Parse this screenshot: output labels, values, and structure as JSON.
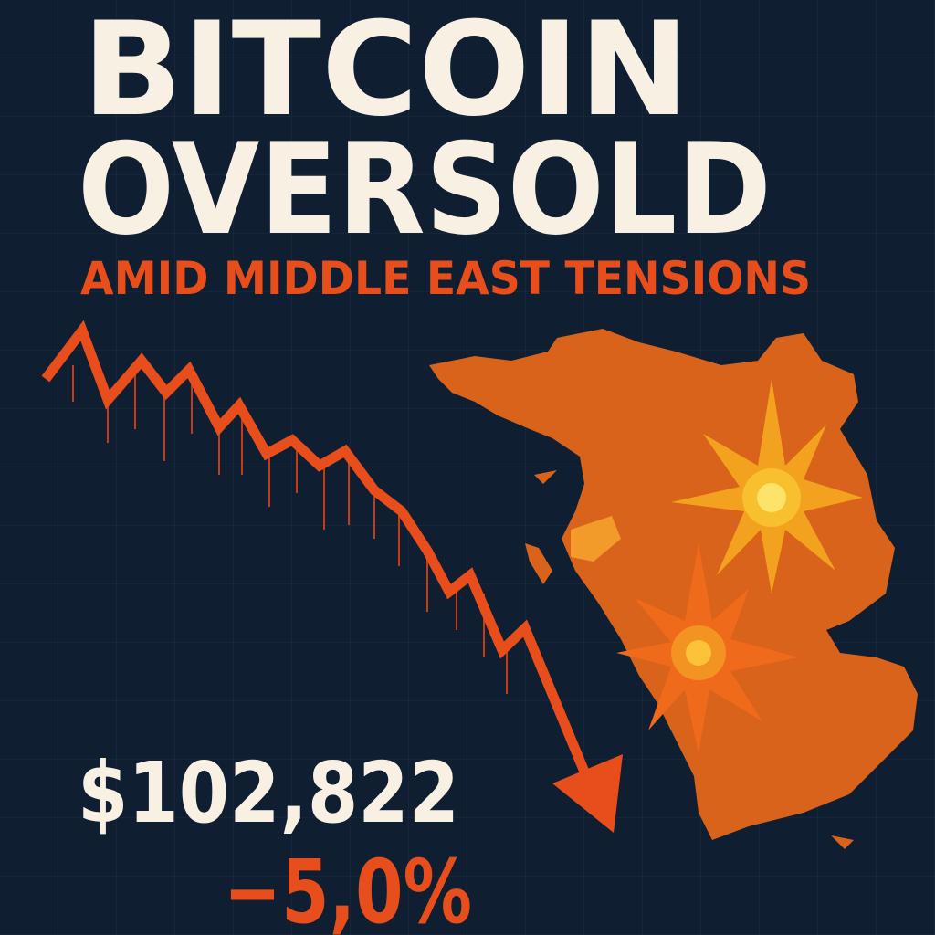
{
  "headline": {
    "line1": "BITCOIN",
    "line2": "OVERSOLD"
  },
  "subtitle": "AMID MIDDLE EAST TENSIONS",
  "price": "$102,822",
  "change": "−5,0%"
}
